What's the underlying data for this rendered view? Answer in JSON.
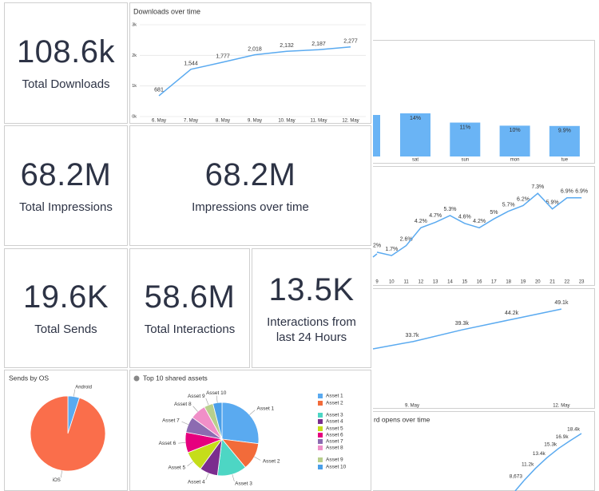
{
  "tiles": [
    {
      "value": "108.6k",
      "label": "Total Downloads"
    },
    {
      "value": "68.2M",
      "label": "Total Impressions"
    },
    {
      "value": "68.2M",
      "label": "Impressions over time"
    },
    {
      "value": "19.6K",
      "label": "Total Sends"
    },
    {
      "value": "58.6M",
      "label": "Total Interactions"
    },
    {
      "value": "13.5K",
      "label": "Interactions from last 24 Hours"
    }
  ],
  "chart_data": [
    {
      "type": "line",
      "title": "Downloads over time",
      "categories": [
        "6. May",
        "7. May",
        "8. May",
        "9. May",
        "10. May",
        "11. May",
        "12. May"
      ],
      "values": [
        681,
        1544,
        1777,
        2018,
        2132,
        2187,
        2277
      ],
      "value_labels": [
        "681",
        "1,544",
        "1,777",
        "2,018",
        "2,132",
        "2,187",
        "2,277"
      ],
      "color": "#5aaaf0",
      "ylim": [
        0,
        3000
      ],
      "yticks": [
        {
          "value": 0,
          "label": "0k"
        },
        {
          "value": 1000,
          "label": "1k"
        },
        {
          "value": 2000,
          "label": "2k"
        },
        {
          "value": 3000,
          "label": "3k"
        }
      ],
      "grid": true
    },
    {
      "type": "pie",
      "title": "Sends by OS",
      "categories": [
        "Android",
        "iOS"
      ],
      "values": [
        5,
        95
      ],
      "colors": [
        "#5aaaf0",
        "#fa6e4b"
      ]
    },
    {
      "type": "pie",
      "title": "Top 10 shared assets",
      "categories": [
        "Asset 1",
        "Asset 2",
        "Asset 3",
        "Asset 4",
        "Asset 5",
        "Asset 6",
        "Asset 7",
        "Asset 8",
        "Asset 9",
        "Asset 10"
      ],
      "values": [
        27,
        12,
        13,
        8,
        9,
        9,
        7,
        7,
        4,
        4
      ],
      "colors": [
        "#5aaaf0",
        "#f26b3a",
        "#4dd6c4",
        "#7b2d8e",
        "#c5dd1a",
        "#e6007e",
        "#8c6bb1",
        "#f08fc8",
        "#b8cf8c",
        "#4a9fe8"
      ],
      "legend": "right"
    },
    {
      "type": "bar",
      "categories": [
        "sat",
        "sun",
        "mon",
        "tue"
      ],
      "values": [
        14,
        11,
        10,
        9.9
      ],
      "value_labels": [
        "14%",
        "11%",
        "10%",
        "9.9%"
      ],
      "color": "#6ab4f5"
    },
    {
      "type": "line",
      "x": [
        9,
        10,
        11,
        12,
        13,
        14,
        15,
        16,
        17,
        18,
        19,
        20,
        21,
        22,
        23
      ],
      "values": [
        2,
        1.7,
        2.6,
        4.2,
        4.7,
        5.3,
        4.6,
        4.2,
        5,
        5.7,
        6.2,
        7.3,
        5.9,
        6.9,
        6.9
      ],
      "value_labels": [
        "2%",
        "1.7%",
        "2.6%",
        "4.2%",
        "4.7%",
        "5.3%",
        "4.6%",
        "4.2%",
        "5%",
        "5.7%",
        "6.2%",
        "7.3%",
        "5.9%",
        "6.9%",
        "6.9%"
      ],
      "color": "#5aaaf0"
    },
    {
      "type": "line",
      "categories": [
        "9. May",
        null,
        null,
        "12. May"
      ],
      "values": [
        33700,
        39300,
        44200,
        49100
      ],
      "value_labels": [
        "33.7k",
        "39.3k",
        "44.2k",
        "49.1k"
      ],
      "color": "#5aaaf0"
    },
    {
      "type": "line",
      "title": "rd opens over time",
      "values": [
        8673,
        11200,
        13400,
        15300,
        16900,
        18400
      ],
      "value_labels": [
        "8,673",
        "11.2k",
        "13.4k",
        "15.3k",
        "16.9k",
        "18.4k"
      ],
      "color": "#5aaaf0"
    }
  ]
}
